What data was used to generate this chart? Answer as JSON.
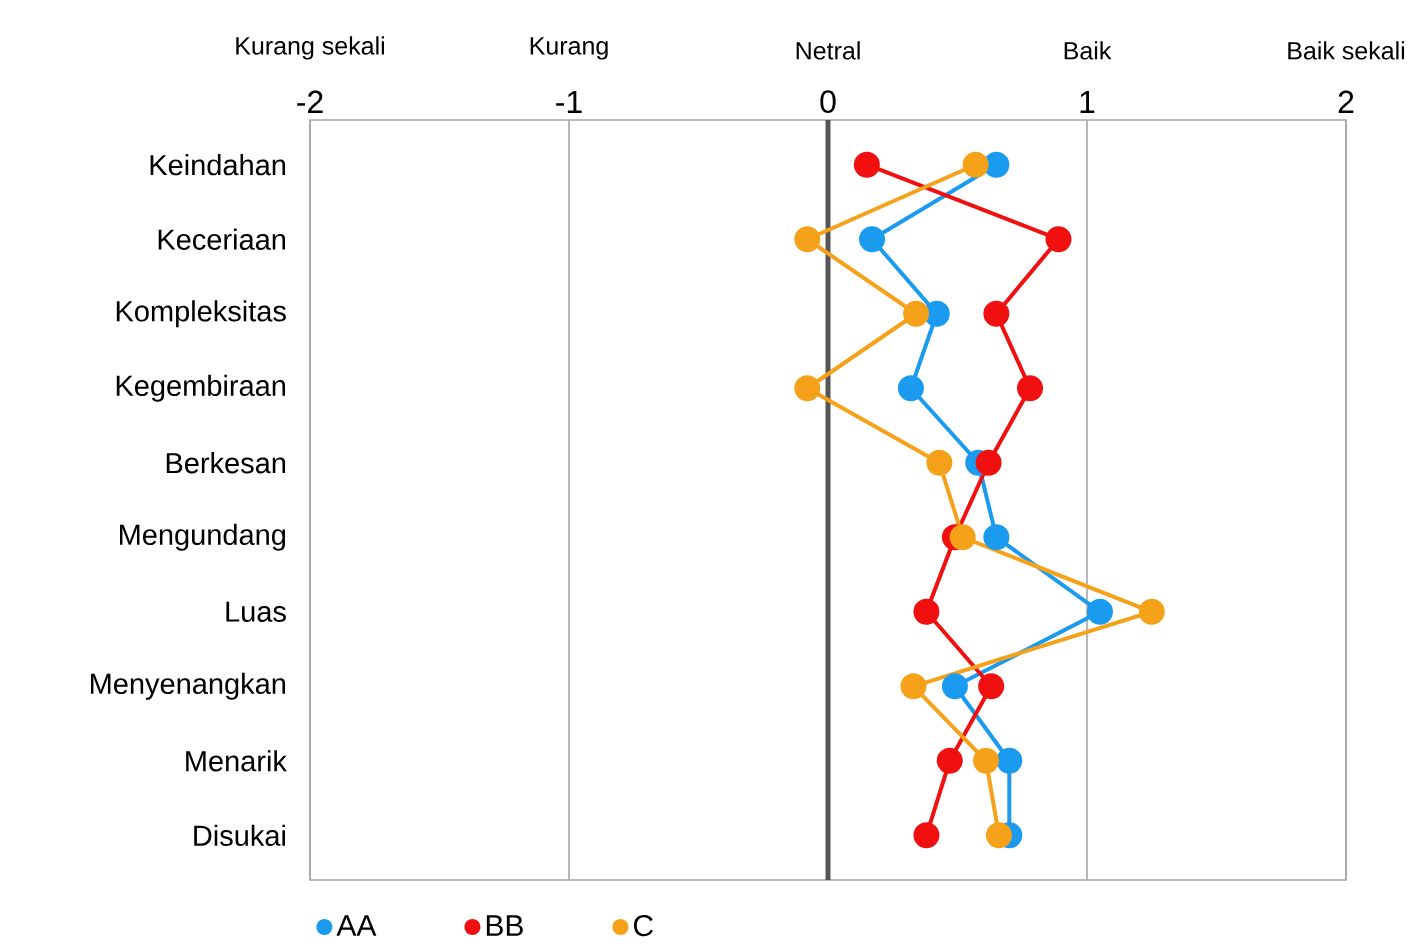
{
  "chart_data": {
    "type": "line",
    "categories": [
      "Keindahan",
      "Keceriaan",
      "Kompleksitas",
      "Kegembiraan",
      "Berkesan",
      "Mengundang",
      "Luas",
      "Menyenangkan",
      "Menarik",
      "Disukai"
    ],
    "orientation": "horizontal",
    "series": [
      {
        "name": "AA",
        "color": "#1a9bf0",
        "values": [
          0.65,
          0.17,
          0.42,
          0.32,
          0.58,
          0.65,
          1.05,
          0.49,
          0.7,
          0.7
        ]
      },
      {
        "name": "BB",
        "color": "#f01010",
        "values": [
          0.15,
          0.89,
          0.65,
          0.78,
          0.62,
          0.49,
          0.38,
          0.63,
          0.47,
          0.38
        ]
      },
      {
        "name": "C",
        "color": "#f5a11a",
        "values": [
          0.57,
          -0.08,
          0.34,
          -0.08,
          0.43,
          0.52,
          1.25,
          0.33,
          0.61,
          0.66
        ]
      }
    ],
    "xlim": [
      -2,
      2
    ],
    "xticks": [
      -2,
      -1,
      0,
      1,
      2
    ],
    "annotations": [
      "Kurang sekali",
      "Kurang",
      "Netral",
      "Baik",
      "Baik sekali"
    ],
    "ref_lines": [
      {
        "axis": "x",
        "value": 0,
        "color": "#555555"
      }
    ],
    "grid": "x",
    "legend": "bottom left",
    "marker": "circle",
    "line_style": "solid"
  }
}
